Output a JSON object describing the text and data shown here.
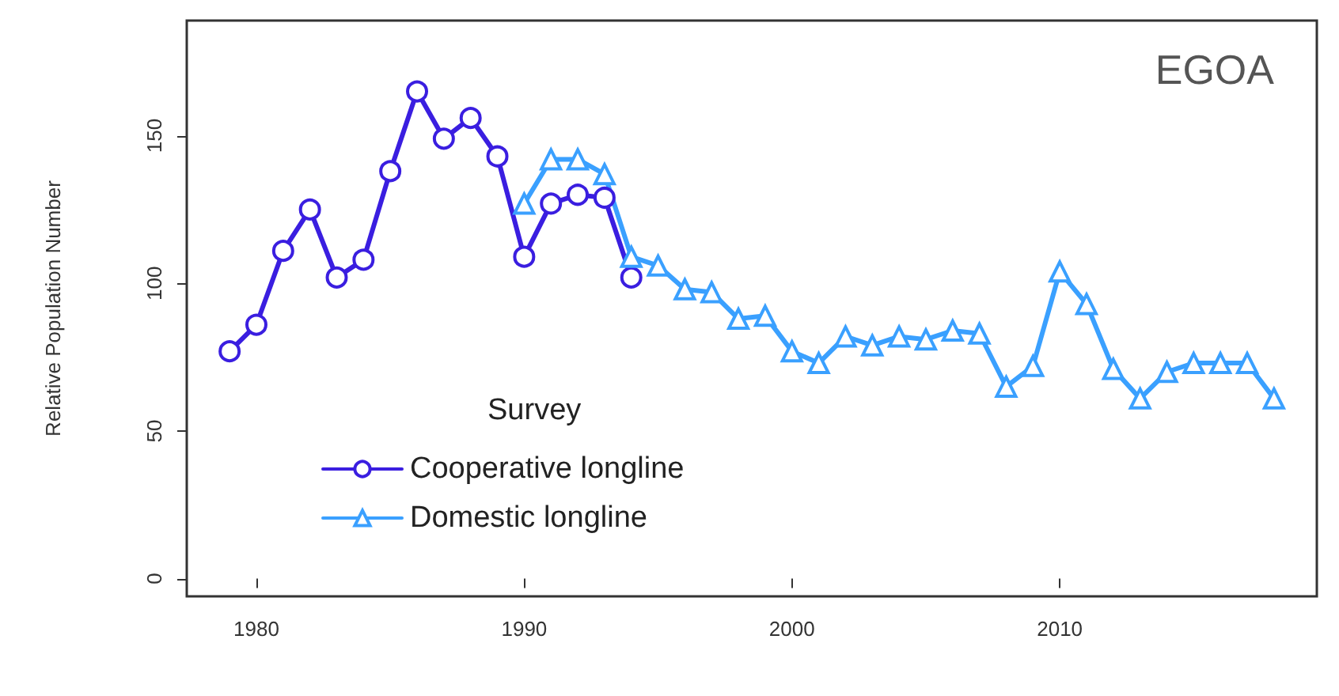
{
  "chart_data": {
    "type": "line",
    "title": "EGOA",
    "ylabel": "Relative Population Number",
    "legend_title": "Survey",
    "legend": "bottom left",
    "grid": false,
    "xlim": [
      1977.4,
      2019.6
    ],
    "xticks": [
      1980,
      1990,
      2000,
      2010
    ],
    "ylim": [
      -6,
      189
    ],
    "yticks": [
      0,
      50,
      100,
      150
    ],
    "series": [
      {
        "name": "Cooperative longline",
        "color": "#3a1ee0",
        "marker": "circle",
        "x": [
          1979,
          1980,
          1981,
          1982,
          1983,
          1984,
          1985,
          1986,
          1987,
          1988,
          1989,
          1990,
          1991,
          1992,
          1993,
          1994
        ],
        "values": [
          77,
          86,
          111,
          125,
          102,
          108,
          138,
          165,
          149,
          156,
          143,
          109,
          127,
          130,
          129,
          102
        ]
      },
      {
        "name": "Domestic longline",
        "color": "#3aa0ff",
        "marker": "triangle",
        "x": [
          1990,
          1991,
          1992,
          1993,
          1994,
          1995,
          1996,
          1997,
          1998,
          1999,
          2000,
          2001,
          2002,
          2003,
          2004,
          2005,
          2006,
          2007,
          2008,
          2009,
          2010,
          2011,
          2012,
          2013,
          2014,
          2015,
          2016,
          2017,
          2018
        ],
        "values": [
          127,
          142,
          142,
          137,
          109,
          106,
          98,
          97,
          88,
          89,
          77,
          73,
          82,
          79,
          82,
          81,
          84,
          83,
          65,
          72,
          104,
          93,
          71,
          61,
          70,
          73,
          73,
          73,
          61
        ]
      }
    ]
  }
}
